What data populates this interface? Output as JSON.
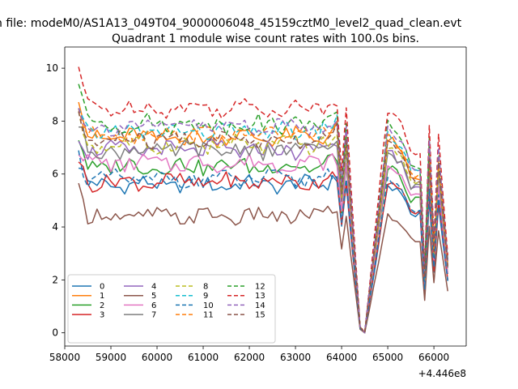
{
  "chart_data": {
    "type": "line",
    "suptitle": "n file: modeM0/AS1A13_049T04_9000006048_45159cztM0_level2_quad_clean.evt",
    "title": "Quadrant 1 module wise count rates with 100.0s bins.",
    "xlabel": "",
    "ylabel": "",
    "offset_label": "+4.446e8",
    "xlim": [
      58000,
      66700
    ],
    "ylim": [
      -0.5,
      10.8
    ],
    "xticks": [
      58000,
      59000,
      60000,
      61000,
      62000,
      63000,
      64000,
      65000,
      66000
    ],
    "xtick_labels": [
      "58000",
      "59000",
      "60000",
      "61000",
      "62000",
      "63000",
      "64000",
      "65000",
      "66000"
    ],
    "yticks": [
      0,
      2,
      4,
      6,
      8,
      10
    ],
    "ytick_labels": [
      "0",
      "2",
      "4",
      "6",
      "8",
      "10"
    ],
    "legend_location": "lower left",
    "legend_columns": 4,
    "x_start": 58300,
    "x_step": 100,
    "anchors_x": [
      58300,
      58500,
      59000,
      59500,
      60000,
      60500,
      61000,
      61500,
      62000,
      62500,
      63000,
      63500,
      63900,
      64000,
      64100,
      64200,
      64400,
      64500,
      65000,
      65300,
      65500,
      65700,
      65800,
      65900,
      66000,
      66100,
      66300
    ],
    "drop_shape": [
      0.72,
      1.0,
      0.66,
      0.03,
      0.0,
      1.0,
      0.93,
      0.8,
      0.8,
      0.28,
      0.92,
      0.42,
      0.88,
      0.35,
      0.33
    ],
    "series": [
      {
        "name": "0",
        "color": "#1f77b4",
        "dash": "solid",
        "level": 5.6,
        "start": 6.4,
        "amp": 0.28
      },
      {
        "name": "1",
        "color": "#ff7f0e",
        "dash": "solid",
        "level": 7.4,
        "start": 8.9,
        "amp": 0.3
      },
      {
        "name": "2",
        "color": "#2ca02c",
        "dash": "solid",
        "level": 6.3,
        "start": 7.3,
        "amp": 0.3
      },
      {
        "name": "3",
        "color": "#d62728",
        "dash": "solid",
        "level": 5.7,
        "start": 6.6,
        "amp": 0.28
      },
      {
        "name": "4",
        "color": "#9467bd",
        "dash": "solid",
        "level": 6.9,
        "start": 7.6,
        "amp": 0.3
      },
      {
        "name": "5",
        "color": "#8c564b",
        "dash": "solid",
        "level": 4.4,
        "start": 5.5,
        "amp": 0.28
      },
      {
        "name": "6",
        "color": "#e377c2",
        "dash": "solid",
        "level": 6.4,
        "start": 7.0,
        "amp": 0.3
      },
      {
        "name": "7",
        "color": "#7f7f7f",
        "dash": "solid",
        "level": 6.9,
        "start": 7.8,
        "amp": 0.32
      },
      {
        "name": "8",
        "color": "#bcbd22",
        "dash": "dashed",
        "level": 7.1,
        "start": 8.0,
        "amp": 0.3
      },
      {
        "name": "9",
        "color": "#17becf",
        "dash": "dashed",
        "level": 7.6,
        "start": 8.3,
        "amp": 0.3
      },
      {
        "name": "10",
        "color": "#1f77b4",
        "dash": "dashed",
        "level": 5.8,
        "start": 6.8,
        "amp": 0.28
      },
      {
        "name": "11",
        "color": "#ff7f0e",
        "dash": "dashed",
        "level": 7.5,
        "start": 8.6,
        "amp": 0.3
      },
      {
        "name": "12",
        "color": "#2ca02c",
        "dash": "dashed",
        "level": 7.9,
        "start": 9.6,
        "amp": 0.3
      },
      {
        "name": "13",
        "color": "#d62728",
        "dash": "dashed",
        "level": 8.5,
        "start": 10.0,
        "amp": 0.28
      },
      {
        "name": "14",
        "color": "#9467bd",
        "dash": "dashed",
        "level": 7.8,
        "start": 8.3,
        "amp": 0.3
      },
      {
        "name": "15",
        "color": "#8c564b",
        "dash": "dashed",
        "level": 7.3,
        "start": 8.0,
        "amp": 0.3
      }
    ]
  }
}
